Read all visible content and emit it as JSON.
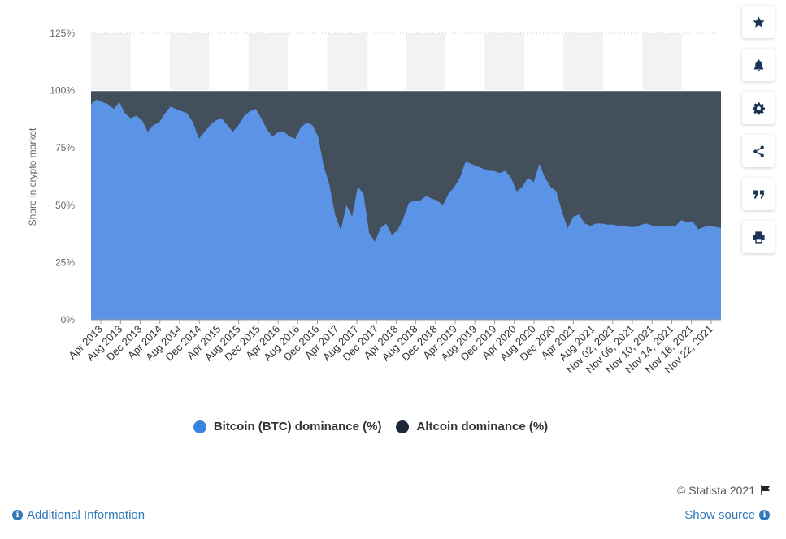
{
  "chart_data": {
    "type": "area",
    "stacked": true,
    "ylabel": "Share in crypto market",
    "y_ticks": [
      "125%",
      "100%",
      "75%",
      "50%",
      "25%",
      "0%"
    ],
    "ylim": [
      0,
      125
    ],
    "grid": true,
    "legend_position": "bottom",
    "x_tick_labels": [
      "Apr 2013",
      "Aug 2013",
      "Dec 2013",
      "Apr 2014",
      "Aug 2014",
      "Dec 2014",
      "Apr 2015",
      "Aug 2015",
      "Dec 2015",
      "Apr 2016",
      "Aug 2016",
      "Dec 2016",
      "Apr 2017",
      "Aug 2017",
      "Dec 2017",
      "Apr 2018",
      "Aug 2018",
      "Dec 2018",
      "Apr 2019",
      "Aug 2019",
      "Dec 2019",
      "Apr 2020",
      "Aug 2020",
      "Dec 2020",
      "Apr 2021",
      "Aug 2021",
      "Nov 02, 2021",
      "Nov 06, 2021",
      "Nov 10, 2021",
      "Nov 14, 2021",
      "Nov 18, 2021",
      "Nov 22, 2021"
    ],
    "series": [
      {
        "name": "Bitcoin (BTC) dominance (%)",
        "color": "#5b94e6",
        "values": [
          94,
          96,
          95,
          94,
          92,
          95,
          90,
          88,
          89,
          87,
          82,
          85,
          86,
          90,
          93,
          92,
          91,
          90,
          86,
          79,
          82,
          85,
          87,
          88,
          85,
          82,
          85,
          89,
          91,
          92,
          88,
          83,
          80,
          82,
          82,
          80,
          79,
          84,
          86,
          85,
          80,
          67,
          59,
          46,
          39,
          50,
          45,
          58,
          55,
          38,
          34,
          40,
          42,
          37,
          39,
          44,
          51,
          52,
          52,
          54,
          53,
          52,
          50,
          55,
          58,
          62,
          69,
          68,
          67,
          66,
          65,
          65,
          64,
          65,
          62,
          56,
          58,
          62,
          60,
          68,
          62,
          58,
          56,
          47,
          40,
          45,
          46,
          42,
          41,
          42,
          42,
          41.5,
          41.5,
          41,
          41,
          40.5,
          40.5,
          41.5,
          42,
          41,
          41,
          40.8,
          41,
          41,
          43.5,
          42.5,
          43,
          39.5,
          40.5,
          41,
          40.5,
          40
        ]
      },
      {
        "name": "Altcoin dominance (%)",
        "color": "#444f5c",
        "values": [
          6,
          4,
          5,
          6,
          8,
          5,
          10,
          12,
          11,
          13,
          18,
          15,
          14,
          10,
          7,
          8,
          9,
          10,
          14,
          21,
          18,
          15,
          13,
          12,
          15,
          18,
          15,
          11,
          9,
          8,
          12,
          17,
          20,
          18,
          18,
          20,
          21,
          16,
          14,
          15,
          20,
          33,
          41,
          54,
          61,
          50,
          55,
          42,
          45,
          62,
          66,
          60,
          58,
          63,
          61,
          56,
          49,
          48,
          48,
          46,
          47,
          48,
          50,
          45,
          42,
          38,
          31,
          32,
          33,
          34,
          35,
          35,
          36,
          35,
          38,
          44,
          42,
          38,
          40,
          32,
          38,
          42,
          44,
          53,
          60,
          55,
          54,
          58,
          59,
          58,
          58,
          58.5,
          58.5,
          59,
          59,
          59.5,
          59.5,
          58.5,
          58,
          59,
          59,
          59.2,
          59,
          59,
          56.5,
          57.5,
          57,
          60.5,
          59.5,
          59,
          59.5,
          60
        ]
      }
    ]
  },
  "legend": {
    "btc_label": "Bitcoin (BTC) dominance (%)",
    "alt_label": "Altcoin dominance (%)",
    "btc_color": "#3a84e0",
    "alt_color": "#1c2836"
  },
  "footer": {
    "credit": "© Statista 2021",
    "additional_info": "Additional Information",
    "show_source": "Show source"
  },
  "sidebar": {
    "icons": [
      "star-icon",
      "bell-icon",
      "gear-icon",
      "share-icon",
      "quote-icon",
      "print-icon"
    ]
  }
}
